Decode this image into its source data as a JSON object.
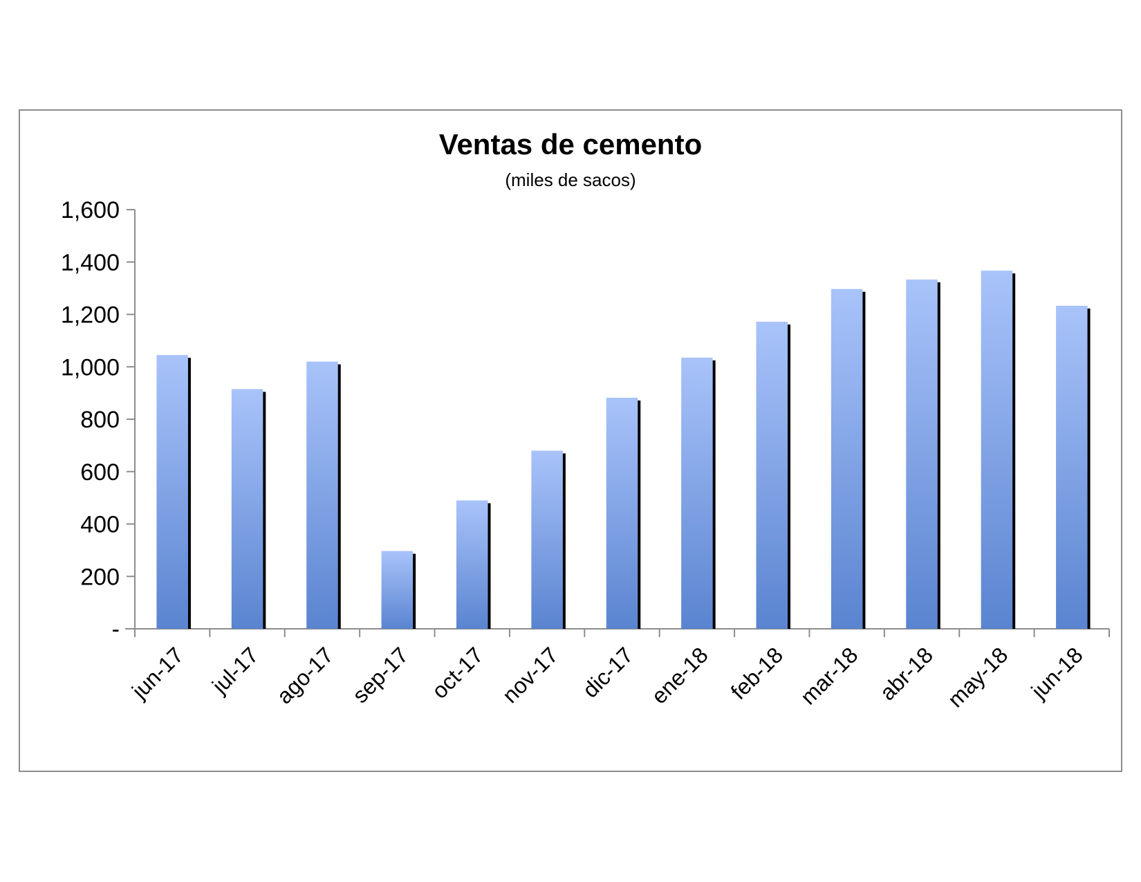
{
  "chart_data": {
    "type": "bar",
    "title": "Ventas de cemento",
    "subtitle": "(miles de sacos)",
    "xlabel": "",
    "ylabel": "",
    "ylim": [
      0,
      1600
    ],
    "yticks": [
      0,
      200,
      400,
      600,
      800,
      1000,
      1200,
      1400,
      1600
    ],
    "ytick_labels": [
      "-",
      "200",
      "400",
      "600",
      "800",
      "1,000",
      "1,200",
      "1,400",
      "1,600"
    ],
    "categories": [
      "jun-17",
      "jul-17",
      "ago-17",
      "sep-17",
      "oct-17",
      "nov-17",
      "dic-17",
      "ene-18",
      "feb-18",
      "mar-18",
      "abr-18",
      "may-18",
      "jun-18"
    ],
    "values": [
      1045,
      915,
      1020,
      297,
      490,
      680,
      882,
      1035,
      1172,
      1297,
      1333,
      1367,
      1233
    ],
    "grid": false,
    "legend": "none",
    "colors": {
      "bar_top": "#a9c3fa",
      "bar_bottom": "#5a84d0",
      "bar_shadow": "#000000",
      "axis": "#8c8c8c",
      "frame": "#8c8c8c"
    }
  }
}
